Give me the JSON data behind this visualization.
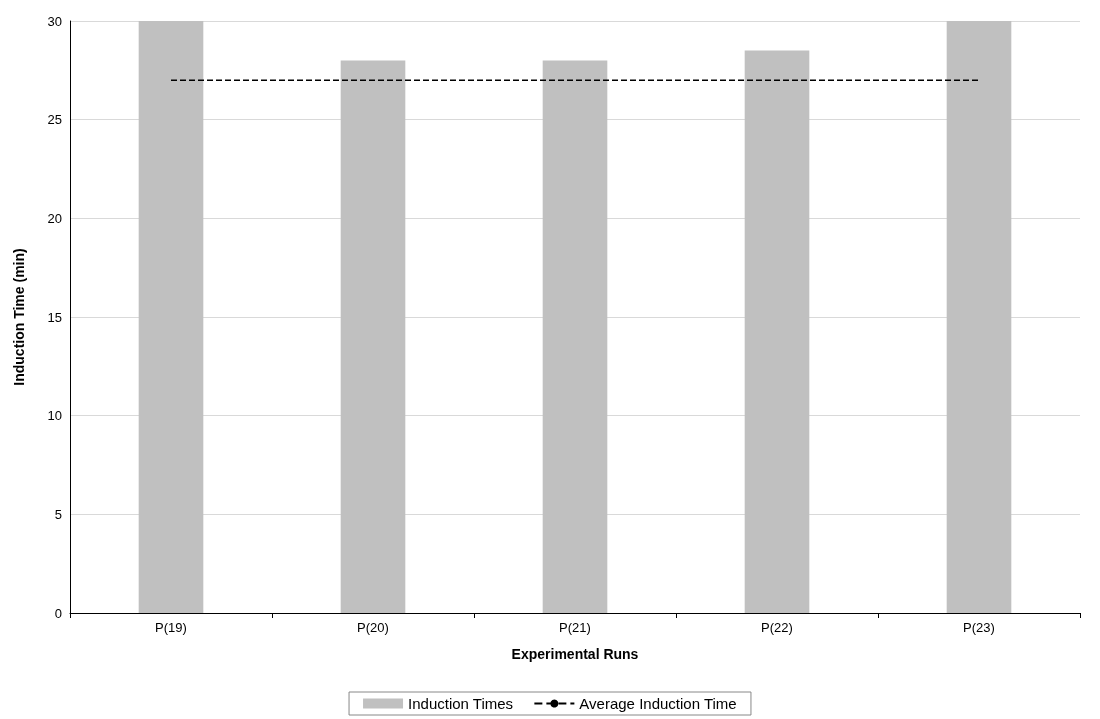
{
  "chart_data": {
    "type": "bar",
    "xlabel": "Experimental Runs",
    "ylabel": "Induction Time (min)",
    "categories": [
      "P(19)",
      "P(20)",
      "P(21)",
      "P(22)",
      "P(23)"
    ],
    "series": [
      {
        "name": "Induction Times",
        "color": "#c0c0c0",
        "values": [
          30,
          28,
          28,
          28.5,
          30
        ]
      },
      {
        "name": "Average Induction Time",
        "type": "line",
        "color": "#000000",
        "line_style": "dashed",
        "values": [
          27,
          27,
          27,
          27,
          27
        ]
      }
    ],
    "ylim": [
      0,
      30
    ],
    "yticks": [
      0,
      5,
      10,
      15,
      20,
      25,
      30
    ],
    "grid": "y",
    "legend": "bottom",
    "marker": "none"
  }
}
